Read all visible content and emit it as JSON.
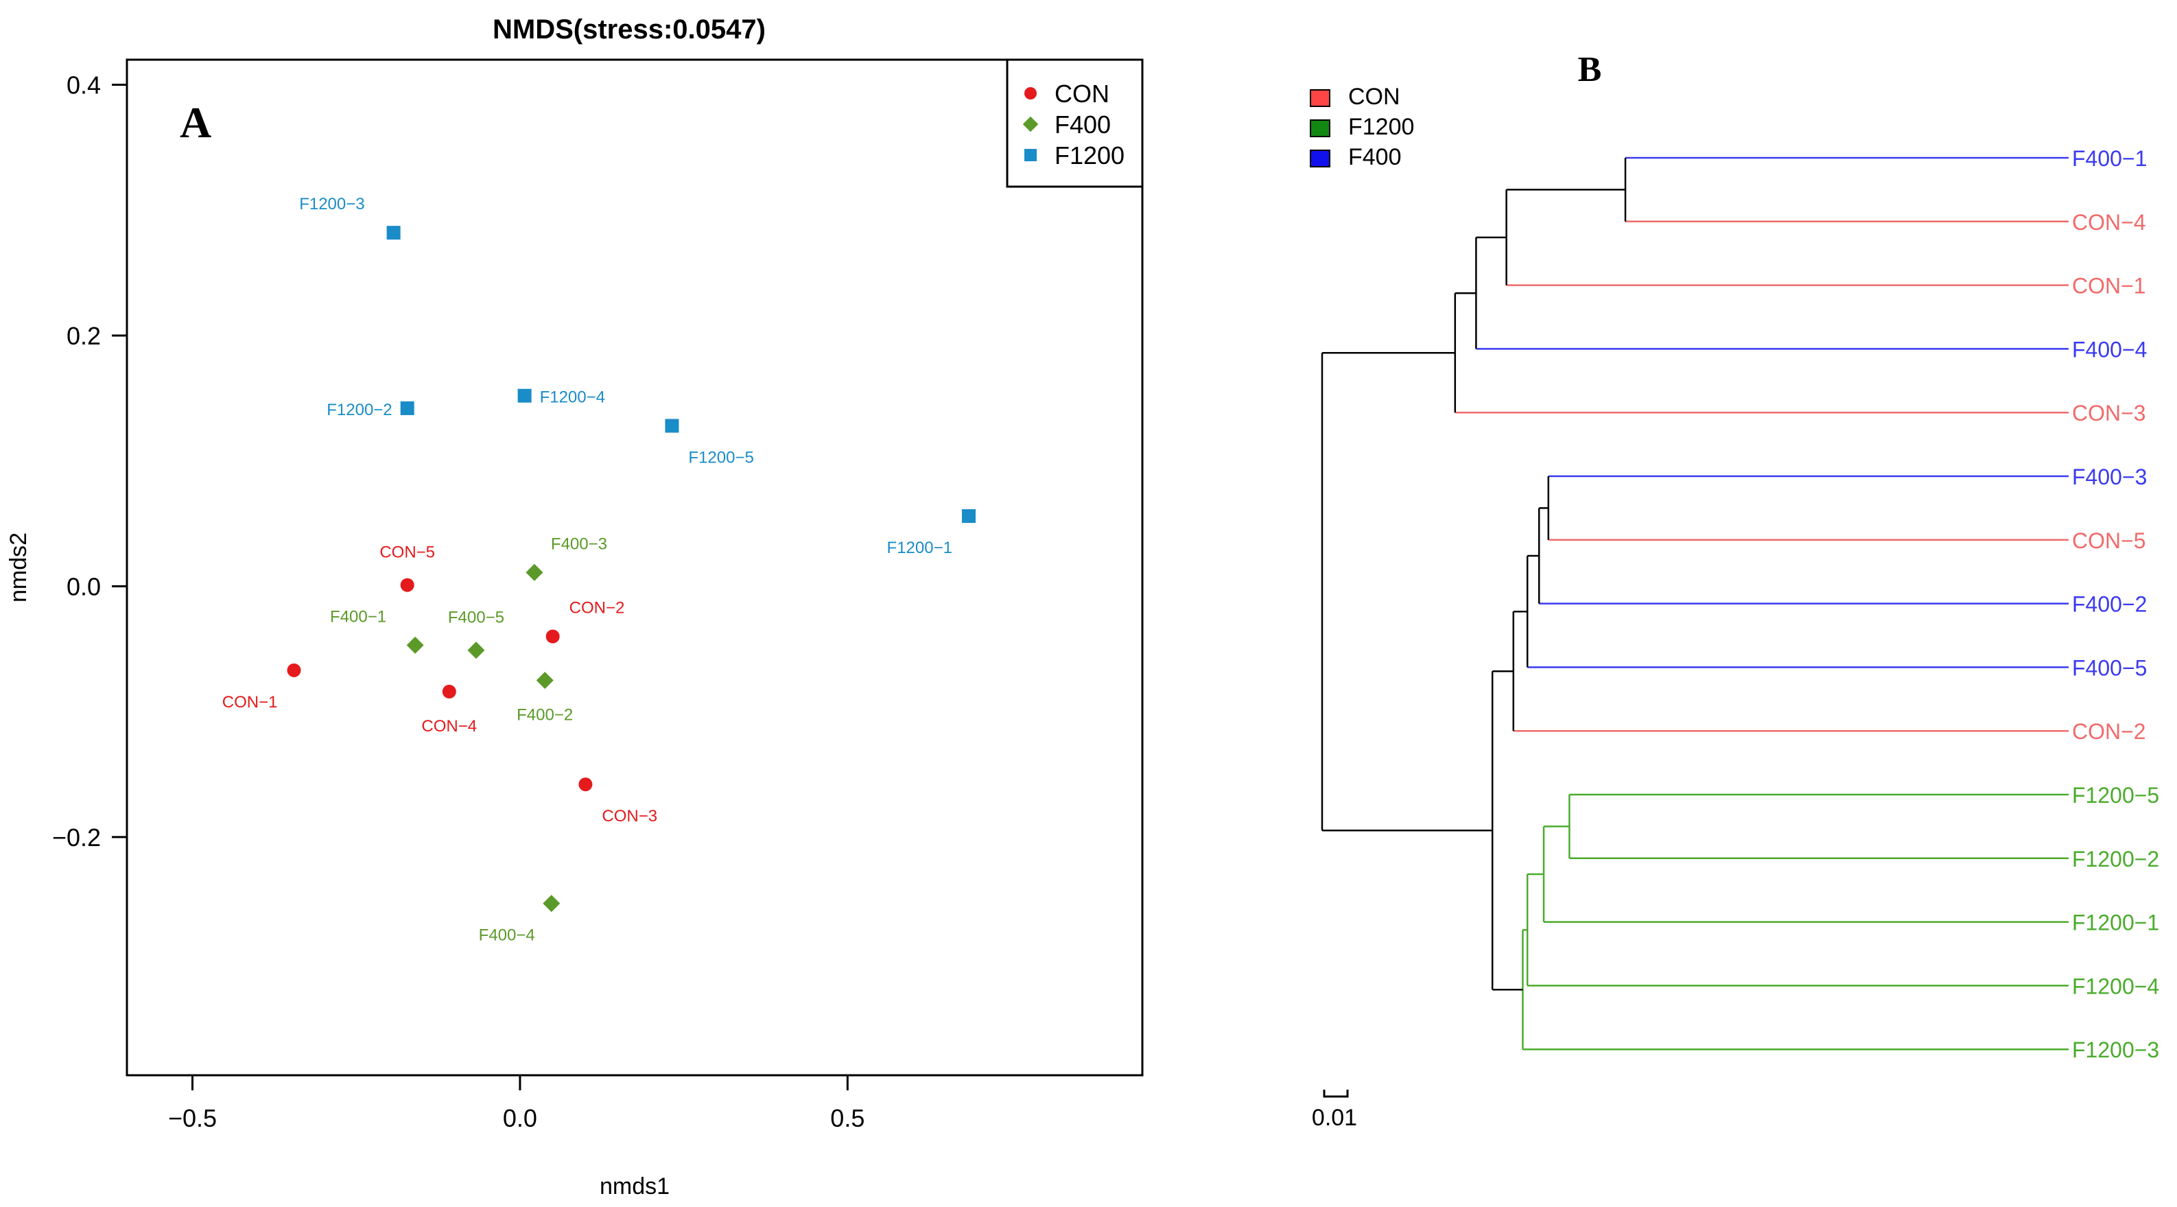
{
  "chart_data": [
    {
      "type": "scatter",
      "panel_label": "A",
      "title": "NMDS(stress:0.0547)",
      "xlabel": "nmds1",
      "ylabel": "nmds2",
      "xlim": [
        -0.6,
        0.95
      ],
      "ylim": [
        -0.39,
        0.42
      ],
      "xticks": [
        -0.5,
        0.0,
        0.5
      ],
      "xtick_labels": [
        "−0.5",
        "0.0",
        "0.5"
      ],
      "yticks": [
        -0.2,
        0.0,
        0.2,
        0.4
      ],
      "ytick_labels": [
        "−0.2",
        "0.0",
        "0.2",
        "0.4"
      ],
      "legend_position": "top-right",
      "series": [
        {
          "name": "CON",
          "marker": "circle",
          "color": "#e41a1c",
          "points": [
            {
              "label": "CON−1",
              "x": -0.345,
              "y": -0.067,
              "label_pos": "below-left"
            },
            {
              "label": "CON−2",
              "x": 0.05,
              "y": -0.04,
              "label_pos": "above-right"
            },
            {
              "label": "CON−3",
              "x": 0.1,
              "y": -0.158,
              "label_pos": "below-right"
            },
            {
              "label": "CON−4",
              "x": -0.108,
              "y": -0.084,
              "label_pos": "below"
            },
            {
              "label": "CON−5",
              "x": -0.172,
              "y": 0.001,
              "label_pos": "above"
            }
          ]
        },
        {
          "name": "F400",
          "marker": "diamond",
          "color": "#5b9a28",
          "points": [
            {
              "label": "F400−1",
              "x": -0.16,
              "y": -0.047,
              "label_pos": "above-left"
            },
            {
              "label": "F400−2",
              "x": 0.038,
              "y": -0.075,
              "label_pos": "below"
            },
            {
              "label": "F400−3",
              "x": 0.022,
              "y": 0.011,
              "label_pos": "above-right"
            },
            {
              "label": "F400−4",
              "x": 0.048,
              "y": -0.253,
              "label_pos": "below-left"
            },
            {
              "label": "F400−5",
              "x": -0.067,
              "y": -0.051,
              "label_pos": "above"
            }
          ]
        },
        {
          "name": "F1200",
          "marker": "square",
          "color": "#1a8cc8",
          "points": [
            {
              "label": "F1200−1",
              "x": 0.685,
              "y": 0.056,
              "label_pos": "below-left"
            },
            {
              "label": "F1200−2",
              "x": -0.172,
              "y": 0.142,
              "label_pos": "left"
            },
            {
              "label": "F1200−3",
              "x": -0.193,
              "y": 0.282,
              "label_pos": "above-left"
            },
            {
              "label": "F1200−4",
              "x": 0.007,
              "y": 0.152,
              "label_pos": "right"
            },
            {
              "label": "F1200−5",
              "x": 0.232,
              "y": 0.128,
              "label_pos": "below-right"
            }
          ]
        }
      ]
    },
    {
      "type": "dendrogram",
      "panel_label": "B",
      "legend_position": "top-left",
      "legend": [
        {
          "name": "CON",
          "color": "#ff4444"
        },
        {
          "name": "F1200",
          "color": "#118811"
        },
        {
          "name": "F400",
          "color": "#1111ee"
        }
      ],
      "scale_bar_label": "0.01",
      "scale_bar_length": 0.01,
      "branch_color": "#000000",
      "leaf_group_colors": {
        "CON": "#f16a6a",
        "F400": "#3a3af0",
        "F1200": "#4aab2c"
      },
      "leaves": [
        {
          "label": "F400−1",
          "group": "F400",
          "height": 0.13
        },
        {
          "label": "CON−4",
          "group": "CON",
          "height": 0.13
        },
        {
          "label": "CON−1",
          "group": "CON",
          "height": 0.079
        },
        {
          "label": "F400−4",
          "group": "F400",
          "height": 0.066
        },
        {
          "label": "CON−3",
          "group": "CON",
          "height": 0.057
        },
        {
          "label": "F400−3",
          "group": "F400",
          "height": 0.097
        },
        {
          "label": "CON−5",
          "group": "CON",
          "height": 0.097
        },
        {
          "label": "F400−2",
          "group": "F400",
          "height": 0.093
        },
        {
          "label": "F400−5",
          "group": "F400",
          "height": 0.088
        },
        {
          "label": "CON−2",
          "group": "CON",
          "height": 0.082
        },
        {
          "label": "F1200−5",
          "group": "F1200",
          "height": 0.106
        },
        {
          "label": "F1200−2",
          "group": "F1200",
          "height": 0.106
        },
        {
          "label": "F1200−1",
          "group": "F1200",
          "height": 0.095
        },
        {
          "label": "F1200−4",
          "group": "F1200",
          "height": 0.088
        },
        {
          "label": "F1200−3",
          "group": "F1200",
          "height": 0.086
        }
      ],
      "merges": [
        {
          "a": "F400−1",
          "b": "CON−4",
          "height": 0.13,
          "id": "m1"
        },
        {
          "a": "m1",
          "b": "CON−1",
          "height": 0.079,
          "id": "m2"
        },
        {
          "a": "m2",
          "b": "F400−4",
          "height": 0.066,
          "id": "m3"
        },
        {
          "a": "m3",
          "b": "CON−3",
          "height": 0.057,
          "id": "m4"
        },
        {
          "a": "F400−3",
          "b": "CON−5",
          "height": 0.097,
          "id": "m5"
        },
        {
          "a": "m5",
          "b": "F400−2",
          "height": 0.093,
          "id": "m6"
        },
        {
          "a": "m6",
          "b": "F400−5",
          "height": 0.088,
          "id": "m7"
        },
        {
          "a": "m7",
          "b": "CON−2",
          "height": 0.082,
          "id": "m8"
        },
        {
          "a": "F1200−5",
          "b": "F1200−2",
          "height": 0.106,
          "id": "m9"
        },
        {
          "a": "m9",
          "b": "F1200−1",
          "height": 0.095,
          "id": "m10"
        },
        {
          "a": "m10",
          "b": "F1200−4",
          "height": 0.088,
          "id": "m11"
        },
        {
          "a": "m11",
          "b": "F1200−3",
          "height": 0.086,
          "id": "m12"
        },
        {
          "a": "m8",
          "b": "m12",
          "height": 0.073,
          "id": "m13"
        },
        {
          "a": "m4",
          "b": "m13",
          "height": 0.0,
          "id": "root"
        }
      ]
    }
  ]
}
